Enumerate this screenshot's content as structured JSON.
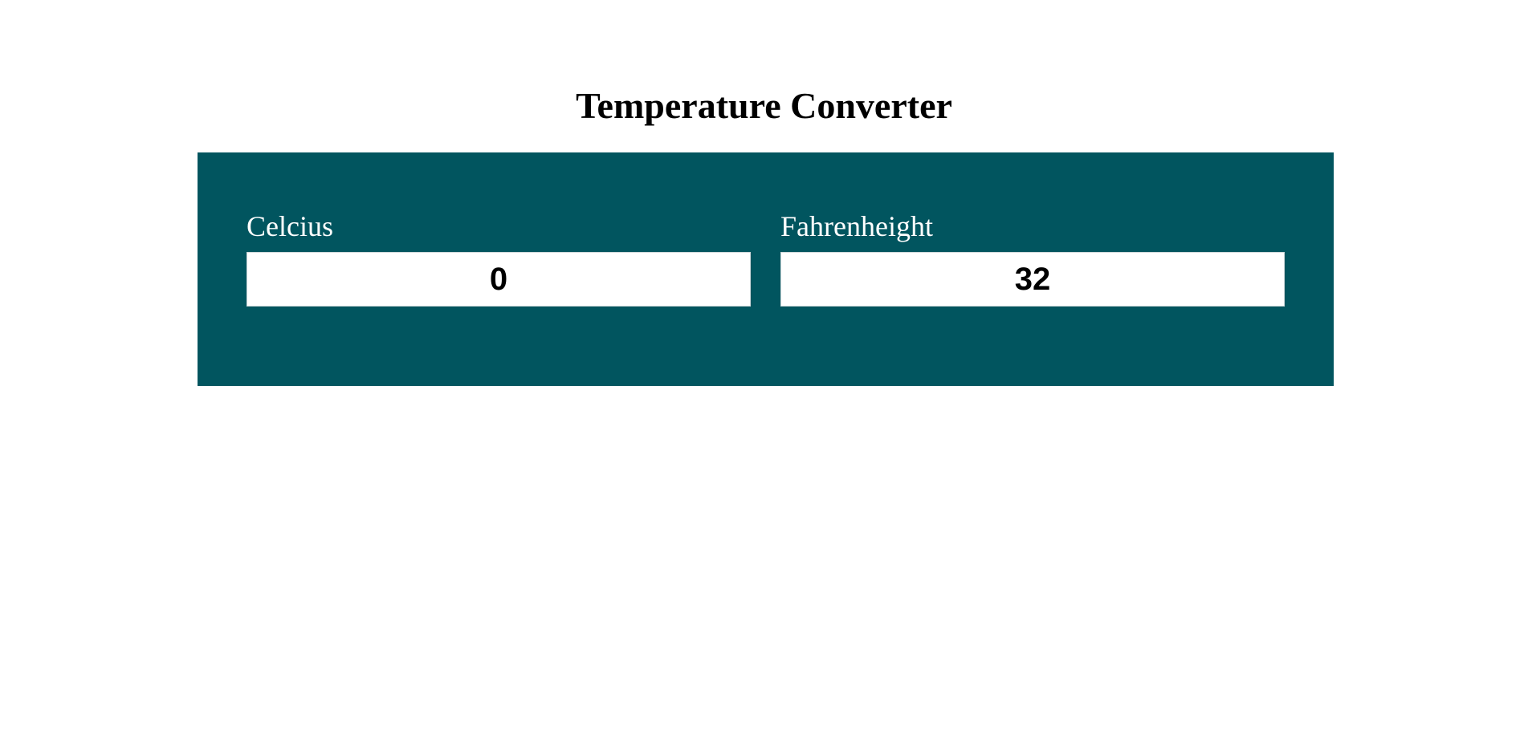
{
  "page": {
    "title": "Temperature Converter"
  },
  "converter": {
    "background_color": "#01555f",
    "celsius": {
      "label": "Celcius",
      "value": "0"
    },
    "fahrenheit": {
      "label": "Fahrenheight",
      "value": "32"
    }
  }
}
